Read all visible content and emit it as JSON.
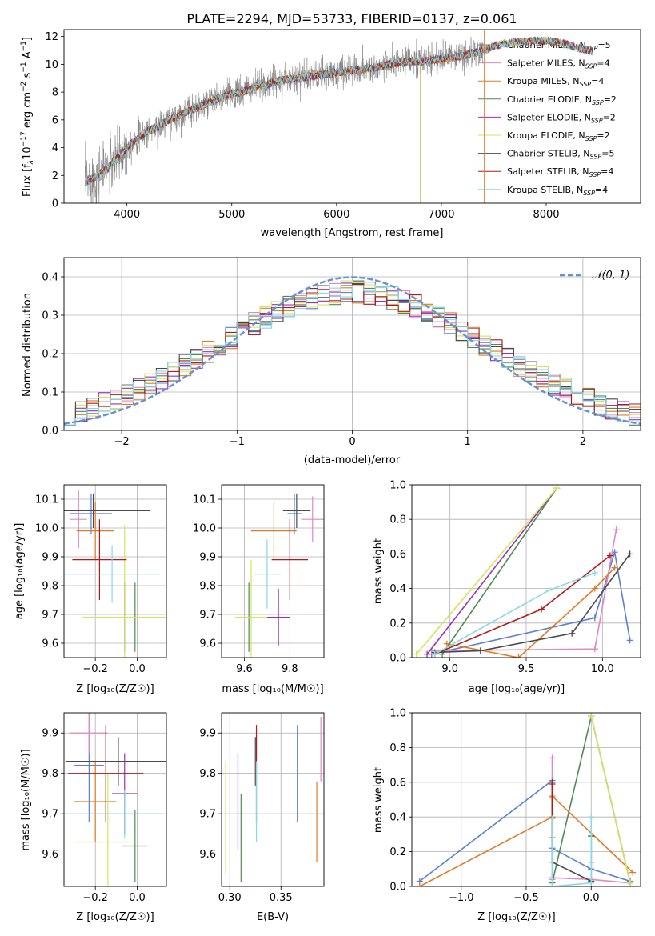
{
  "colors": {
    "Chabrier MILES": "#5b7fd2",
    "Salpeter MILES": "#e088c0",
    "Kroupa MILES": "#e07a25",
    "Chabrier ELODIE": "#4f8a55",
    "Salpeter ELODIE": "#9a31b3",
    "Kroupa ELODIE": "#d2e65a",
    "Chabrier STELIB": "#4a4a4a",
    "Salpeter STELIB": "#b01a1a",
    "Kroupa STELIB": "#86d9e6",
    "data": "#7f7f7f",
    "gaussian": "#6a8fd6"
  },
  "models": [
    {
      "base": "Chabrier MILES",
      "n": "5"
    },
    {
      "base": "Salpeter MILES",
      "n": "4"
    },
    {
      "base": "Kroupa MILES",
      "n": "4"
    },
    {
      "base": "Chabrier ELODIE",
      "n": "2"
    },
    {
      "base": "Salpeter ELODIE",
      "n": "2"
    },
    {
      "base": "Kroupa ELODIE",
      "n": "2"
    },
    {
      "base": "Chabrier STELIB",
      "n": "5"
    },
    {
      "base": "Salpeter STELIB",
      "n": "4"
    },
    {
      "base": "Kroupa STELIB",
      "n": "4"
    }
  ],
  "chart_data": [
    {
      "id": "spectrum",
      "type": "line",
      "title": "PLATE=2294, MJD=53733, FIBERID=0137, z=0.061",
      "xlabel": "wavelength [Angstrom, rest frame]",
      "ylabel_parts": {
        "a": "Flux [f",
        "b": "λ",
        "c": "10",
        "d": "−17",
        "e": " erg cm",
        "f": "−2",
        "g": " s",
        "h": "−1",
        "i": " A",
        "j": "−1",
        "k": "]"
      },
      "legend_sub": "SSP",
      "xlim": [
        3400,
        8900
      ],
      "ylim": [
        0,
        12.5
      ],
      "xticks": [
        4000,
        5000,
        6000,
        7000,
        8000
      ],
      "yticks": [
        0,
        2,
        4,
        6,
        8,
        10,
        12
      ],
      "continuum": [
        [
          3600,
          1.5
        ],
        [
          3700,
          1.9
        ],
        [
          3800,
          2.4
        ],
        [
          3900,
          3.2
        ],
        [
          4000,
          4.0
        ],
        [
          4100,
          4.7
        ],
        [
          4200,
          5.2
        ],
        [
          4300,
          5.5
        ],
        [
          4400,
          6.0
        ],
        [
          4500,
          6.3
        ],
        [
          4600,
          6.7
        ],
        [
          4700,
          7.0
        ],
        [
          4800,
          7.3
        ],
        [
          4900,
          7.6
        ],
        [
          5000,
          7.9
        ],
        [
          5100,
          8.0
        ],
        [
          5200,
          8.3
        ],
        [
          5300,
          8.5
        ],
        [
          5400,
          8.7
        ],
        [
          5500,
          8.9
        ],
        [
          5600,
          9.0
        ],
        [
          5700,
          9.1
        ],
        [
          5800,
          9.2
        ],
        [
          5900,
          9.3
        ],
        [
          6000,
          9.4
        ],
        [
          6100,
          9.5
        ],
        [
          6200,
          9.6
        ],
        [
          6300,
          9.7
        ],
        [
          6400,
          9.8
        ],
        [
          6500,
          10.0
        ],
        [
          6600,
          10.1
        ],
        [
          6700,
          10.2
        ],
        [
          6800,
          10.2
        ],
        [
          6900,
          10.3
        ],
        [
          7000,
          10.4
        ],
        [
          7100,
          10.5
        ],
        [
          7200,
          10.6
        ],
        [
          7300,
          10.8
        ],
        [
          7400,
          11.0
        ],
        [
          7500,
          11.3
        ],
        [
          7600,
          11.5
        ],
        [
          7700,
          11.6
        ],
        [
          7800,
          11.6
        ],
        [
          7900,
          11.7
        ],
        [
          8000,
          11.7
        ],
        [
          8100,
          11.6
        ],
        [
          8200,
          11.4
        ],
        [
          8300,
          11.2
        ],
        [
          8400,
          11.0
        ],
        [
          8500,
          10.8
        ]
      ],
      "data_end": 7400,
      "model_end": 8450
    },
    {
      "id": "residuals",
      "type": "area",
      "xlabel": "(data-model)/error",
      "ylabel": "Normed distribution",
      "legend": "𝒩(0, 1)",
      "xlim": [
        -2.5,
        2.5
      ],
      "ylim": [
        0,
        0.45
      ],
      "xticks": [
        -2,
        -1,
        0,
        1,
        2
      ],
      "xtick_labels": [
        "−2",
        "−1",
        "0",
        "1",
        "2"
      ],
      "yticks": [
        0.0,
        0.1,
        0.2,
        0.3,
        0.4
      ],
      "ytick_labels": [
        "0.0",
        "0.1",
        "0.2",
        "0.3",
        "0.4"
      ],
      "bin_width": 0.1,
      "bin_start": -2.5,
      "grid": true
    },
    {
      "id": "age-vs-Z",
      "type": "scatter",
      "xlabel": "Z [log₁₀(Z/Z☉)]",
      "ylabel": "age  [log₁₀(age/yr)]",
      "xlim": [
        -0.35,
        0.14
      ],
      "ylim": [
        9.55,
        10.15
      ],
      "xticks": [
        -0.2,
        0.0
      ],
      "xtick_labels": [
        "−0.2",
        "0.0"
      ],
      "yticks": [
        9.6,
        9.7,
        9.8,
        9.9,
        10.0,
        10.1
      ],
      "ytick_labels": [
        "9.6",
        "9.7",
        "9.8",
        "9.9",
        "10.0",
        "10.1"
      ],
      "grid": true,
      "points": [
        {
          "model": "Chabrier MILES",
          "x": -0.22,
          "xerr": 0.1,
          "y": 10.05,
          "yerr": 0.07
        },
        {
          "model": "Salpeter MILES",
          "x": -0.28,
          "xerr": 0.04,
          "y": 10.03,
          "yerr": 0.1
        },
        {
          "model": "Kroupa MILES",
          "x": -0.2,
          "xerr": 0.09,
          "y": 9.99,
          "yerr": 0.1
        },
        {
          "model": "Chabrier ELODIE",
          "x": -0.01,
          "xerr": 0.01,
          "y": 9.69,
          "yerr": 0.12
        },
        {
          "model": "Salpeter ELODIE",
          "x": -0.06,
          "xerr": 0.08,
          "y": 9.69,
          "yerr": 0.12
        },
        {
          "model": "Kroupa ELODIE",
          "x": -0.06,
          "xerr": 0.2,
          "y": 9.69,
          "yerr": 0.32
        },
        {
          "model": "Chabrier STELIB",
          "x": -0.21,
          "xerr": 0.27,
          "y": 10.06,
          "yerr": 0.06
        },
        {
          "model": "Salpeter STELIB",
          "x": -0.18,
          "xerr": 0.13,
          "y": 9.89,
          "yerr": 0.14
        },
        {
          "model": "Kroupa STELIB",
          "x": -0.12,
          "xerr": 0.23,
          "y": 9.84,
          "yerr": 0.1
        }
      ]
    },
    {
      "id": "age-vs-mass",
      "type": "scatter",
      "xlabel": "mass [log₁₀(M/M☉)]",
      "xlim": [
        9.5,
        9.95
      ],
      "ylim": [
        9.55,
        10.15
      ],
      "xticks": [
        9.6,
        9.8
      ],
      "xtick_labels": [
        "9.6",
        "9.8"
      ],
      "yticks": [
        9.6,
        9.7,
        9.8,
        9.9,
        10.0,
        10.1
      ],
      "ytick_labels": [
        "9.6",
        "9.7",
        "9.8",
        "9.9",
        "10.0",
        "10.1"
      ],
      "grid": true,
      "points": [
        {
          "model": "Chabrier MILES",
          "x": 9.82,
          "xerr": 0.03,
          "y": 10.05,
          "yerr": 0.07
        },
        {
          "model": "Salpeter MILES",
          "x": 9.9,
          "xerr": 0.05,
          "y": 10.03,
          "yerr": 0.08
        },
        {
          "model": "Kroupa MILES",
          "x": 9.73,
          "xerr": 0.1,
          "y": 9.99,
          "yerr": 0.1
        },
        {
          "model": "Chabrier ELODIE",
          "x": 9.62,
          "xerr": 0.05,
          "y": 9.69,
          "yerr": 0.12
        },
        {
          "model": "Salpeter ELODIE",
          "x": 9.75,
          "xerr": 0.05,
          "y": 9.69,
          "yerr": 0.1
        },
        {
          "model": "Kroupa ELODIE",
          "x": 9.63,
          "xerr": 0.07,
          "y": 9.69,
          "yerr": 0.2
        },
        {
          "model": "Chabrier STELIB",
          "x": 9.83,
          "xerr": 0.06,
          "y": 10.06,
          "yerr": 0.06
        },
        {
          "model": "Salpeter STELIB",
          "x": 9.8,
          "xerr": 0.08,
          "y": 9.89,
          "yerr": 0.14
        },
        {
          "model": "Kroupa STELIB",
          "x": 9.7,
          "xerr": 0.06,
          "y": 9.84,
          "yerr": 0.12
        }
      ]
    },
    {
      "id": "weight-vs-age",
      "type": "line",
      "xlabel": "age  [log₁₀(age/yr)]",
      "ylabel": "mass weight",
      "xlim": [
        8.75,
        10.25
      ],
      "ylim": [
        0,
        1
      ],
      "xticks": [
        9.0,
        9.5,
        10.0
      ],
      "xtick_labels": [
        "9.0",
        "9.5",
        "10.0"
      ],
      "yticks": [
        0,
        0.2,
        0.4,
        0.6,
        0.8,
        1.0
      ],
      "ytick_labels": [
        "0.0",
        "0.2",
        "0.4",
        "0.6",
        "0.8",
        "1.0"
      ],
      "grid": true,
      "series": [
        {
          "model": "Chabrier MILES",
          "x": [
            8.88,
            9.95,
            10.08,
            10.18
          ],
          "y": [
            0.02,
            0.23,
            0.61,
            0.1
          ]
        },
        {
          "model": "Salpeter MILES",
          "x": [
            8.88,
            9.95,
            10.09
          ],
          "y": [
            0.04,
            0.05,
            0.74
          ]
        },
        {
          "model": "Kroupa MILES",
          "x": [
            8.98,
            9.45,
            9.95,
            10.08
          ],
          "y": [
            0.08,
            0.0,
            0.4,
            0.52
          ]
        },
        {
          "model": "Chabrier ELODIE",
          "x": [
            8.95,
            9.7
          ],
          "y": [
            0.02,
            0.98
          ]
        },
        {
          "model": "Salpeter ELODIE",
          "x": [
            8.85,
            9.7
          ],
          "y": [
            0.02,
            0.98
          ]
        },
        {
          "model": "Kroupa ELODIE",
          "x": [
            8.78,
            9.7
          ],
          "y": [
            0.02,
            0.98
          ]
        },
        {
          "model": "Chabrier STELIB",
          "x": [
            8.9,
            9.2,
            9.8,
            10.18
          ],
          "y": [
            0.03,
            0.04,
            0.14,
            0.6
          ]
        },
        {
          "model": "Salpeter STELIB",
          "x": [
            8.9,
            9.6,
            10.05
          ],
          "y": [
            0.02,
            0.28,
            0.59
          ]
        },
        {
          "model": "Kroupa STELIB",
          "x": [
            8.9,
            9.65,
            9.95
          ],
          "y": [
            0.02,
            0.39,
            0.49
          ]
        }
      ]
    },
    {
      "id": "mass-vs-Z",
      "type": "scatter",
      "xlabel": "Z [log₁₀(Z/Z☉)]",
      "ylabel": "mass [log₁₀(M/M☉)]",
      "xlim": [
        -0.35,
        0.14
      ],
      "ylim": [
        9.52,
        9.95
      ],
      "xticks": [
        -0.2,
        0.0
      ],
      "xtick_labels": [
        "−0.2",
        "0.0"
      ],
      "yticks": [
        9.6,
        9.7,
        9.8,
        9.9
      ],
      "ytick_labels": [
        "9.6",
        "9.7",
        "9.8",
        "9.9"
      ],
      "grid": true,
      "points": [
        {
          "model": "Chabrier MILES",
          "x": -0.23,
          "xerr": 0.07,
          "y": 9.82,
          "yerr": 0.14
        },
        {
          "model": "Salpeter MILES",
          "x": -0.23,
          "xerr": 0.09,
          "y": 9.9,
          "yerr": 0.05
        },
        {
          "model": "Kroupa MILES",
          "x": -0.2,
          "xerr": 0.1,
          "y": 9.73,
          "yerr": 0.1
        },
        {
          "model": "Chabrier ELODIE",
          "x": -0.01,
          "xerr": 0.06,
          "y": 9.62,
          "yerr": 0.09
        },
        {
          "model": "Salpeter ELODIE",
          "x": -0.06,
          "xerr": 0.06,
          "y": 9.75,
          "yerr": 0.1
        },
        {
          "model": "Kroupa ELODIE",
          "x": -0.14,
          "xerr": 0.16,
          "y": 9.63,
          "yerr": 0.17
        },
        {
          "model": "Chabrier STELIB",
          "x": -0.09,
          "xerr": 0.25,
          "y": 9.83,
          "yerr": 0.06
        },
        {
          "model": "Salpeter STELIB",
          "x": -0.15,
          "xerr": 0.18,
          "y": 9.8,
          "yerr": 0.12
        },
        {
          "model": "Kroupa STELIB",
          "x": -0.06,
          "xerr": 0.18,
          "y": 9.7,
          "yerr": 0.06
        }
      ]
    },
    {
      "id": "mass-vs-EBV",
      "type": "scatter",
      "xlabel": "E(B-V)",
      "xlim": [
        0.292,
        0.392
      ],
      "ylim": [
        9.52,
        9.95
      ],
      "xticks": [
        0.3,
        0.35
      ],
      "xtick_labels": [
        "0.30",
        "0.35"
      ],
      "yticks": [
        9.6,
        9.7,
        9.8,
        9.9
      ],
      "ytick_labels": [
        "9.6",
        "9.7",
        "9.8",
        "9.9"
      ],
      "grid": true,
      "points": [
        {
          "model": "Chabrier MILES",
          "x": 0.366,
          "xerr": 0,
          "y": 9.8,
          "yerr": 0.12
        },
        {
          "model": "Salpeter MILES",
          "x": 0.389,
          "xerr": 0,
          "y": 9.86,
          "yerr": 0.08
        },
        {
          "model": "Kroupa MILES",
          "x": 0.385,
          "xerr": 0,
          "y": 9.68,
          "yerr": 0.1
        },
        {
          "model": "Chabrier ELODIE",
          "x": 0.311,
          "xerr": 0,
          "y": 9.64,
          "yerr": 0.11
        },
        {
          "model": "Salpeter ELODIE",
          "x": 0.308,
          "xerr": 0,
          "y": 9.73,
          "yerr": 0.12
        },
        {
          "model": "Kroupa ELODIE",
          "x": 0.296,
          "xerr": 0,
          "y": 9.69,
          "yerr": 0.14
        },
        {
          "model": "Chabrier STELIB",
          "x": 0.325,
          "xerr": 0,
          "y": 9.83,
          "yerr": 0.06
        },
        {
          "model": "Salpeter STELIB",
          "x": 0.326,
          "xerr": 0,
          "y": 9.8,
          "yerr": 0.12
        },
        {
          "model": "Kroupa STELIB",
          "x": 0.326,
          "xerr": 0,
          "y": 9.73,
          "yerr": 0.1
        }
      ]
    },
    {
      "id": "weight-vs-Z",
      "type": "line",
      "xlabel": "Z [log₁₀(Z/Z☉)]",
      "ylabel": "mass weight",
      "xlim": [
        -1.38,
        0.38
      ],
      "ylim": [
        0,
        1
      ],
      "xticks": [
        -1.0,
        -0.5,
        0.0
      ],
      "xtick_labels": [
        "−1.0",
        "−0.5",
        "0.0"
      ],
      "yticks": [
        0,
        0.2,
        0.4,
        0.6,
        0.8,
        1.0
      ],
      "ytick_labels": [
        "0.0",
        "0.2",
        "0.4",
        "0.6",
        "0.8",
        "1.0"
      ],
      "grid": true,
      "series": [
        {
          "model": "Chabrier MILES",
          "x": [
            -1.32,
            -0.3,
            -0.3,
            0.0,
            0.3
          ],
          "y": [
            0.03,
            0.61,
            0.22,
            0.1,
            0.03
          ]
        },
        {
          "model": "Salpeter MILES",
          "x": [
            -0.3,
            -0.3,
            -0.3,
            0.0,
            0.3
          ],
          "y": [
            0.74,
            0.04,
            0.05,
            0.04,
            0.02
          ]
        },
        {
          "model": "Kroupa MILES",
          "x": [
            -1.32,
            -0.3,
            -0.3,
            0.32
          ],
          "y": [
            0.0,
            0.4,
            0.52,
            0.08
          ]
        },
        {
          "model": "Chabrier ELODIE",
          "x": [
            -0.3,
            0.0
          ],
          "y": [
            0.02,
            0.98
          ]
        },
        {
          "model": "Salpeter ELODIE",
          "x": [
            0.0,
            0.3
          ],
          "y": [
            0.98,
            0.02
          ]
        },
        {
          "model": "Kroupa ELODIE",
          "x": [
            0.0,
            0.3
          ],
          "y": [
            0.98,
            0.02
          ]
        },
        {
          "model": "Chabrier STELIB",
          "x": [
            -0.3,
            -0.3,
            0.0,
            0.0,
            0.0
          ],
          "y": [
            0.6,
            0.14,
            0.03,
            0.29,
            0.14
          ]
        },
        {
          "model": "Salpeter STELIB",
          "x": [
            -0.3,
            -0.3,
            -0.3
          ],
          "y": [
            0.59,
            0.28,
            0.51
          ]
        },
        {
          "model": "Kroupa STELIB",
          "x": [
            -0.3,
            -0.3,
            0.0,
            0.0
          ],
          "y": [
            0.39,
            0.0,
            0.02,
            0.4
          ]
        }
      ]
    }
  ]
}
